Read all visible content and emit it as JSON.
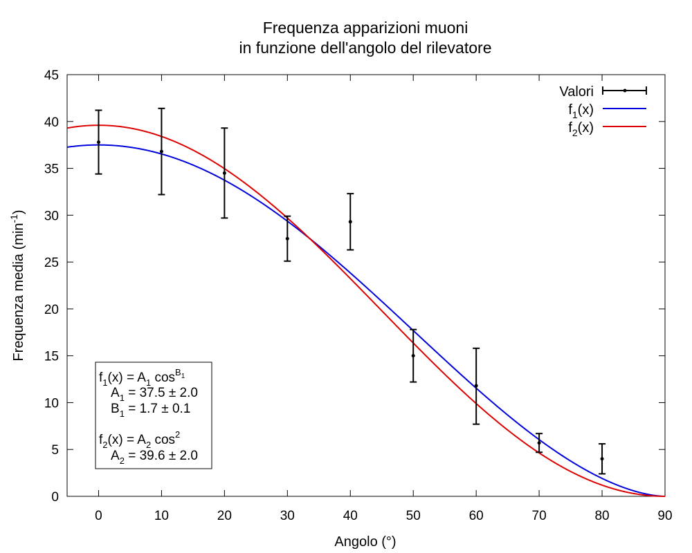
{
  "chart_data": {
    "type": "scatter",
    "title_line1": "Frequenza apparizioni muoni",
    "title_line2": "in funzione dell'angolo del rilevatore",
    "xlabel": "Angolo (°)",
    "ylabel": {
      "base": "Frequenza media (min",
      "sup": "-1",
      "close": ")"
    },
    "xlim": [
      -5,
      90
    ],
    "ylim": [
      0,
      45
    ],
    "xticks": [
      0,
      10,
      20,
      30,
      40,
      50,
      60,
      70,
      80,
      90
    ],
    "yticks": [
      0,
      5,
      10,
      15,
      20,
      25,
      30,
      35,
      40,
      45
    ],
    "grid": false,
    "legend_position": "top-right",
    "legend": {
      "valori": "Valori",
      "f1": {
        "base": "f",
        "sub": "1",
        "rest": "(x)"
      },
      "f2": {
        "base": "f",
        "sub": "2",
        "rest": "(x)"
      }
    },
    "series": [
      {
        "name": "Valori",
        "kind": "points-errorbars",
        "color": "#000000",
        "points": [
          {
            "x": 0,
            "y": 37.8,
            "ylow": 34.4,
            "yhigh": 41.2
          },
          {
            "x": 10,
            "y": 36.8,
            "ylow": 32.2,
            "yhigh": 41.4
          },
          {
            "x": 20,
            "y": 34.5,
            "ylow": 29.7,
            "yhigh": 39.3
          },
          {
            "x": 30,
            "y": 27.5,
            "ylow": 25.1,
            "yhigh": 29.9
          },
          {
            "x": 40,
            "y": 29.3,
            "ylow": 26.3,
            "yhigh": 32.3
          },
          {
            "x": 50,
            "y": 15.0,
            "ylow": 12.2,
            "yhigh": 17.8
          },
          {
            "x": 60,
            "y": 11.8,
            "ylow": 7.7,
            "yhigh": 15.8
          },
          {
            "x": 70,
            "y": 5.7,
            "ylow": 4.7,
            "yhigh": 6.7
          },
          {
            "x": 80,
            "y": 4.0,
            "ylow": 2.4,
            "yhigh": 5.6
          }
        ]
      },
      {
        "name": "f1(x)",
        "kind": "curve",
        "color": "#0000dd",
        "A": 37.5,
        "B": 1.7
      },
      {
        "name": "f2(x)",
        "kind": "curve",
        "color": "#dd0000",
        "A": 39.6,
        "B": 2
      }
    ],
    "annotation": {
      "f1_eq": {
        "a": "f",
        "a_sub": "1",
        "b": "(x) = A",
        "b_sub": "1",
        "c": " cos",
        "c_sup": "B",
        "c_sup_sub": "1"
      },
      "A1": {
        "a": "A",
        "a_sub": "1",
        "rest": " = 37.5 ± 2.0"
      },
      "B1": {
        "a": "B",
        "a_sub": "1",
        "rest": " = 1.7 ± 0.1"
      },
      "f2_eq": {
        "a": "f",
        "a_sub": "2",
        "b": "(x) = A",
        "b_sub": "2",
        "c": " cos",
        "c_sup": "2"
      },
      "A2": {
        "a": "A",
        "a_sub": "2",
        "rest": " = 39.6 ± 2.0"
      }
    }
  }
}
